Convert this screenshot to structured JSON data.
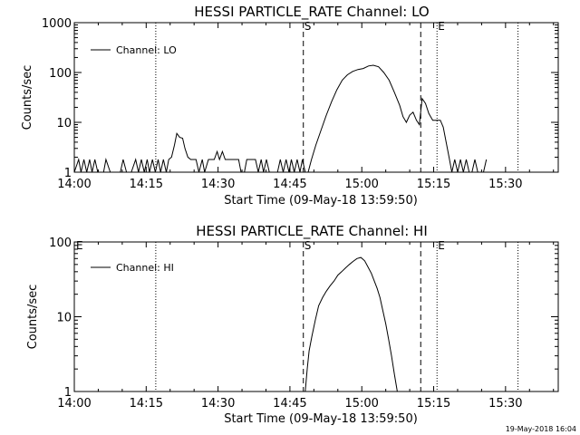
{
  "chart_data": [
    {
      "type": "line",
      "title": "HESSI PARTICLE_RATE Channel: LO",
      "xlabel": "Start Time (09-May-18 13:59:50)",
      "ylabel": "Counts/sec",
      "yscale": "log",
      "ylim": [
        1,
        1000
      ],
      "xlim_minutes": [
        0,
        101
      ],
      "x_tick_minutes": [
        0,
        15,
        30,
        45,
        60,
        75,
        90
      ],
      "x_tick_labels": [
        "14:00",
        "14:15",
        "14:30",
        "14:45",
        "15:00",
        "15:15",
        "15:30"
      ],
      "y_ticks": [
        1,
        10,
        100,
        1000
      ],
      "y_tick_labels": [
        "1",
        "10",
        "100",
        "1000"
      ],
      "legend": "Channel: LO",
      "legend_position": "top-left",
      "markers": [
        {
          "label": "",
          "minute": 17.0,
          "style": "dotted"
        },
        {
          "label": "S",
          "minute": 47.8,
          "style": "dashed"
        },
        {
          "label": "",
          "minute": 72.3,
          "style": "dashed"
        },
        {
          "label": "E",
          "minute": 75.7,
          "style": "dotted"
        },
        {
          "label": "",
          "minute": 92.6,
          "style": "dotted"
        }
      ],
      "series": [
        {
          "name": "Channel: LO",
          "x_minutes": [
            0.0,
            0.9,
            1.4,
            2.0,
            2.6,
            3.2,
            3.7,
            4.3,
            4.9,
            5.4,
            6.1,
            6.6,
            7.5,
            8.0,
            8.6,
            9.1,
            9.6,
            10.2,
            10.9,
            11.3,
            11.9,
            12.8,
            13.4,
            14.0,
            14.6,
            15.2,
            15.7,
            16.3,
            16.9,
            17.5,
            18.0,
            18.6,
            19.2,
            19.7,
            20.3,
            20.9,
            21.4,
            22.0,
            22.6,
            23.1,
            23.7,
            24.3,
            24.9,
            25.4,
            26.0,
            26.7,
            27.2,
            28.0,
            28.6,
            29.2,
            29.8,
            30.3,
            30.9,
            31.5,
            32.0,
            32.6,
            33.2,
            33.7,
            34.3,
            34.8,
            35.5,
            36.0,
            36.6,
            37.2,
            37.8,
            38.4,
            39.0,
            39.5,
            40.1,
            40.7,
            41.2,
            41.8,
            42.4,
            43.0,
            43.6,
            44.2,
            44.8,
            45.3,
            45.9,
            46.5,
            47.1,
            47.6,
            48.2,
            48.8,
            49.5,
            50.4,
            51.5,
            52.6,
            53.7,
            54.8,
            55.9,
            57.0,
            58.1,
            59.2,
            60.3,
            61.4,
            62.4,
            63.5,
            64.6,
            65.7,
            66.8,
            67.9,
            68.6,
            69.3,
            70.0,
            70.7,
            71.4,
            72.0,
            72.6,
            73.3,
            74.0,
            74.8,
            75.6,
            76.4,
            77.0,
            77.6,
            78.2,
            78.8,
            79.4,
            80.0,
            80.6,
            81.2,
            81.8,
            82.4,
            83.0,
            83.6,
            84.2,
            84.8,
            85.4,
            86.0
          ],
          "values": [
            1.0,
            1.8,
            1.0,
            1.8,
            1.0,
            1.8,
            1.0,
            1.8,
            1.0,
            1.0,
            1.0,
            1.8,
            1.0,
            1.0,
            1.0,
            1.0,
            1.0,
            1.8,
            1.0,
            1.0,
            1.0,
            1.8,
            1.0,
            1.8,
            1.0,
            1.8,
            1.0,
            1.8,
            1.0,
            1.8,
            1.0,
            1.8,
            1.0,
            1.8,
            2.0,
            3.5,
            6.0,
            5.0,
            4.8,
            3.0,
            2.0,
            1.8,
            1.8,
            1.8,
            1.0,
            1.8,
            1.0,
            1.8,
            1.8,
            1.8,
            2.6,
            1.8,
            2.6,
            1.8,
            1.8,
            1.8,
            1.8,
            1.8,
            1.8,
            1.0,
            1.0,
            1.8,
            1.8,
            1.8,
            1.8,
            1.0,
            1.8,
            1.0,
            1.8,
            1.0,
            1.0,
            1.0,
            1.0,
            1.8,
            1.0,
            1.8,
            1.0,
            1.8,
            1.0,
            1.8,
            1.0,
            1.8,
            1.0,
            1.0,
            1.8,
            3.5,
            7.0,
            14.0,
            26.0,
            45.0,
            70.0,
            90.0,
            105.0,
            115.0,
            120.0,
            135.0,
            140.0,
            130.0,
            100.0,
            70.0,
            40.0,
            22.0,
            13.0,
            10.0,
            14.0,
            16.0,
            11.0,
            9.0,
            30.0,
            24.0,
            15.0,
            11.0,
            11.0,
            11.0,
            8.0,
            4.0,
            2.0,
            1.0,
            1.8,
            1.0,
            1.8,
            1.0,
            1.8,
            1.0,
            1.0,
            1.8,
            1.0,
            1.0,
            1.0,
            1.8
          ]
        }
      ]
    },
    {
      "type": "line",
      "title": "HESSI PARTICLE_RATE Channel: HI",
      "xlabel": "Start Time (09-May-18 13:59:50)",
      "ylabel": "Counts/sec",
      "yscale": "log",
      "ylim": [
        1,
        100
      ],
      "xlim_minutes": [
        0,
        101
      ],
      "x_tick_minutes": [
        0,
        15,
        30,
        45,
        60,
        75,
        90
      ],
      "x_tick_labels": [
        "14:00",
        "14:15",
        "14:30",
        "14:45",
        "15:00",
        "15:15",
        "15:30"
      ],
      "y_ticks": [
        1,
        10,
        100
      ],
      "y_tick_labels": [
        "1",
        "10",
        "100"
      ],
      "legend": "Channel: HI",
      "legend_position": "top-left",
      "markers": [
        {
          "label": "E",
          "minute": 0.2,
          "style": "none"
        },
        {
          "label": "",
          "minute": 17.0,
          "style": "dotted"
        },
        {
          "label": "S",
          "minute": 47.8,
          "style": "dashed"
        },
        {
          "label": "",
          "minute": 72.3,
          "style": "dashed"
        },
        {
          "label": "E",
          "minute": 75.7,
          "style": "dotted"
        },
        {
          "label": "",
          "minute": 92.6,
          "style": "dotted"
        }
      ],
      "series": [
        {
          "name": "Channel: HI",
          "x_minutes": [
            48.2,
            48.6,
            49.0,
            49.6,
            50.3,
            51.0,
            51.8,
            52.6,
            53.4,
            54.2,
            55.0,
            55.8,
            56.6,
            57.4,
            58.2,
            59.0,
            59.8,
            60.6,
            61.4,
            62.0,
            62.6,
            63.2,
            63.8,
            64.4,
            65.0,
            65.6,
            66.2,
            66.8,
            67.4
          ],
          "values": [
            1.0,
            2.0,
            3.5,
            5.5,
            9.0,
            14.0,
            18.0,
            22.0,
            26.0,
            30.0,
            36.0,
            40.0,
            45.0,
            50.0,
            55.0,
            60.0,
            62.0,
            56.0,
            45.0,
            38.0,
            30.0,
            24.0,
            18.0,
            12.0,
            8.0,
            5.0,
            3.0,
            1.7,
            1.0
          ]
        }
      ]
    }
  ],
  "footer": {
    "timestamp": "19-May-2018 16:04"
  }
}
